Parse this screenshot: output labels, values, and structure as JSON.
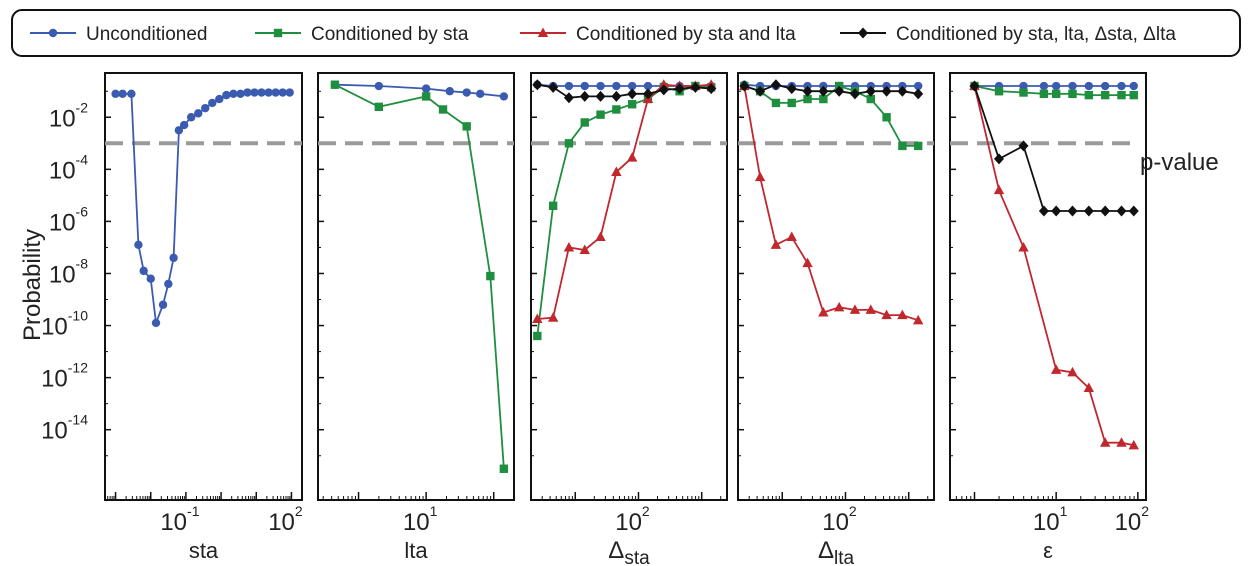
{
  "colors": {
    "unconditioned": "#3a5bb0",
    "sta": "#1f8f3f",
    "sta_lta": "#c0282e",
    "all": "#111111",
    "pvalue": "#9a9a9a"
  },
  "legend": {
    "items": [
      {
        "label": "Unconditioned",
        "series": "unconditioned",
        "marker": "circle"
      },
      {
        "label": "Conditioned by sta",
        "series": "sta",
        "marker": "square"
      },
      {
        "label": "Conditioned by sta and lta",
        "series": "sta_lta",
        "marker": "triangle"
      },
      {
        "label": "Conditioned by sta, lta, Δsta, Δlta",
        "series": "all",
        "marker": "diamond"
      }
    ]
  },
  "ylabel": "Probability",
  "pvalue_label": "p-value",
  "y_ticks": [
    {
      "exp": -2,
      "label": "10",
      "sup": "-2"
    },
    {
      "exp": -4,
      "label": "10",
      "sup": "-4"
    },
    {
      "exp": -6,
      "label": "10",
      "sup": "-6"
    },
    {
      "exp": -8,
      "label": "10",
      "sup": "-8"
    },
    {
      "exp": -10,
      "label": "10",
      "sup": "-10"
    },
    {
      "exp": -12,
      "label": "10",
      "sup": "-12"
    },
    {
      "exp": -14,
      "label": "10",
      "sup": "-14"
    }
  ],
  "chart_data": [
    {
      "type": "line",
      "xlabel": "sta",
      "xlabel_sub": "",
      "xscale": "log",
      "yscale": "log",
      "ylim_exp": [
        -16.7,
        -0.3
      ],
      "xlim_exp": [
        -3.3,
        2.3
      ],
      "xticks": [
        {
          "exp": -1,
          "label": "10",
          "sup": "-1"
        },
        {
          "exp": 2,
          "label": "10",
          "sup": "2"
        }
      ],
      "pvalue": 0.001,
      "series": [
        {
          "key": "unconditioned",
          "x_exp": [
            -3.0,
            -2.8,
            -2.55,
            -2.35,
            -2.2,
            -2.0,
            -1.85,
            -1.65,
            -1.5,
            -1.35,
            -1.2,
            -1.05,
            -0.85,
            -0.65,
            -0.45,
            -0.25,
            -0.05,
            0.15,
            0.35,
            0.55,
            0.75,
            0.95,
            1.15,
            1.35,
            1.55,
            1.75,
            1.95
          ],
          "y_exp": [
            -1.1,
            -1.1,
            -1.1,
            -6.9,
            -7.9,
            -8.2,
            -9.9,
            -9.2,
            -8.4,
            -7.4,
            -2.5,
            -2.3,
            -2.0,
            -1.85,
            -1.65,
            -1.45,
            -1.3,
            -1.15,
            -1.1,
            -1.1,
            -1.05,
            -1.05,
            -1.05,
            -1.05,
            -1.05,
            -1.05,
            -1.05
          ]
        }
      ]
    },
    {
      "type": "line",
      "xlabel": "lta",
      "xlabel_sub": "",
      "xscale": "log",
      "yscale": "log",
      "ylim_exp": [
        -16.7,
        -0.3
      ],
      "xlim_exp": [
        -0.6,
        2.3
      ],
      "xticks": [
        {
          "exp": 1,
          "label": "10",
          "sup": "1"
        }
      ],
      "pvalue": 0.001,
      "series": [
        {
          "key": "unconditioned",
          "x_exp": [
            -0.35,
            0.3,
            1.0,
            1.35,
            1.6,
            1.8,
            2.15
          ],
          "y_exp": [
            -0.75,
            -0.8,
            -0.9,
            -1.0,
            -1.05,
            -1.1,
            -1.2
          ]
        },
        {
          "key": "sta",
          "x_exp": [
            -0.35,
            0.3,
            1.0,
            1.25,
            1.6,
            1.95,
            2.15
          ],
          "y_exp": [
            -0.75,
            -1.6,
            -1.2,
            -1.7,
            -2.35,
            -8.1,
            -15.5
          ]
        }
      ]
    },
    {
      "type": "line",
      "xlabel": "Δ",
      "xlabel_sub": "sta",
      "xscale": "log",
      "yscale": "log",
      "ylim_exp": [
        -16.7,
        -0.3
      ],
      "xlim_exp": [
        0.3,
        3.4
      ],
      "xticks": [
        {
          "exp": 2,
          "label": "10",
          "sup": "2"
        }
      ],
      "pvalue": 0.001,
      "series": [
        {
          "key": "unconditioned",
          "x_exp": [
            0.4,
            0.65,
            0.9,
            1.15,
            1.4,
            1.65,
            1.9,
            2.15,
            2.4,
            2.65,
            2.9,
            3.15
          ],
          "y_exp": [
            -0.75,
            -0.8,
            -0.8,
            -0.8,
            -0.8,
            -0.8,
            -0.8,
            -0.8,
            -0.8,
            -0.8,
            -0.8,
            -0.8
          ]
        },
        {
          "key": "sta",
          "x_exp": [
            0.4,
            0.65,
            0.9,
            1.15,
            1.4,
            1.65,
            1.9,
            2.15,
            2.4,
            2.65,
            2.9,
            3.15
          ],
          "y_exp": [
            -10.4,
            -5.4,
            -3.0,
            -2.2,
            -1.9,
            -1.7,
            -1.5,
            -1.3,
            -0.85,
            -1.0,
            -0.8,
            -0.85
          ]
        },
        {
          "key": "sta_lta",
          "x_exp": [
            0.4,
            0.65,
            0.9,
            1.15,
            1.4,
            1.65,
            1.9,
            2.15,
            2.4,
            2.65,
            2.9,
            3.15
          ],
          "y_exp": [
            -9.75,
            -9.7,
            -7.0,
            -7.1,
            -6.6,
            -4.1,
            -3.55,
            -1.3,
            -0.75,
            -0.8,
            -0.8,
            -0.75
          ]
        },
        {
          "key": "all",
          "x_exp": [
            0.4,
            0.65,
            0.9,
            1.15,
            1.4,
            1.65,
            1.9,
            2.15,
            2.4,
            2.65,
            2.9,
            3.15
          ],
          "y_exp": [
            -0.75,
            -0.85,
            -1.25,
            -1.2,
            -1.2,
            -1.2,
            -1.1,
            -1.1,
            -0.95,
            -0.9,
            -0.85,
            -0.9
          ]
        }
      ]
    },
    {
      "type": "line",
      "xlabel": "Δ",
      "xlabel_sub": "lta",
      "xscale": "log",
      "yscale": "log",
      "ylim_exp": [
        -16.7,
        -0.3
      ],
      "xlim_exp": [
        0.3,
        3.4
      ],
      "xticks": [
        {
          "exp": 2,
          "label": "10",
          "sup": "2"
        }
      ],
      "pvalue": 0.001,
      "series": [
        {
          "key": "unconditioned",
          "x_exp": [
            0.4,
            0.65,
            0.9,
            1.15,
            1.4,
            1.65,
            1.9,
            2.15,
            2.4,
            2.65,
            2.9,
            3.15
          ],
          "y_exp": [
            -0.75,
            -0.8,
            -0.8,
            -0.8,
            -0.8,
            -0.8,
            -0.8,
            -0.8,
            -0.8,
            -0.8,
            -0.8,
            -0.8
          ]
        },
        {
          "key": "sta",
          "x_exp": [
            0.4,
            0.65,
            0.9,
            1.15,
            1.4,
            1.65,
            1.9,
            2.15,
            2.4,
            2.65,
            2.9,
            3.15
          ],
          "y_exp": [
            -0.8,
            -1.0,
            -1.45,
            -1.45,
            -1.3,
            -1.3,
            -0.8,
            -1.0,
            -1.3,
            -2.0,
            -3.1,
            -3.1
          ]
        },
        {
          "key": "sta_lta",
          "x_exp": [
            0.4,
            0.65,
            0.9,
            1.15,
            1.4,
            1.65,
            1.9,
            2.15,
            2.4,
            2.65,
            2.9,
            3.15
          ],
          "y_exp": [
            -0.8,
            -4.3,
            -6.9,
            -6.6,
            -7.6,
            -9.5,
            -9.3,
            -9.4,
            -9.4,
            -9.6,
            -9.6,
            -9.8
          ]
        },
        {
          "key": "all",
          "x_exp": [
            0.4,
            0.65,
            0.9,
            1.15,
            1.4,
            1.65,
            1.9,
            2.15,
            2.4,
            2.65,
            2.9,
            3.15
          ],
          "y_exp": [
            -0.8,
            -1.0,
            -0.75,
            -0.9,
            -1.0,
            -1.0,
            -1.0,
            -1.1,
            -1.0,
            -1.0,
            -1.0,
            -1.1
          ]
        }
      ]
    },
    {
      "type": "line",
      "xlabel": "ε",
      "xlabel_sub": "",
      "xscale": "log",
      "yscale": "log",
      "ylim_exp": [
        -16.7,
        -0.3
      ],
      "xlim_exp": [
        -0.3,
        2.1
      ],
      "xticks": [
        {
          "exp": 1,
          "label": "10",
          "sup": "1"
        },
        {
          "exp": 2,
          "label": "10",
          "sup": "2"
        }
      ],
      "pvalue": 0.001,
      "series": [
        {
          "key": "unconditioned",
          "x_exp": [
            0.0,
            0.3,
            0.6,
            0.85,
            1.0,
            1.2,
            1.4,
            1.6,
            1.8,
            1.95
          ],
          "y_exp": [
            -0.8,
            -0.8,
            -0.8,
            -0.8,
            -0.8,
            -0.8,
            -0.8,
            -0.8,
            -0.8,
            -0.8
          ]
        },
        {
          "key": "sta",
          "x_exp": [
            0.0,
            0.3,
            0.6,
            0.85,
            1.0,
            1.2,
            1.4,
            1.6,
            1.8,
            1.95
          ],
          "y_exp": [
            -0.8,
            -1.0,
            -1.05,
            -1.1,
            -1.1,
            -1.1,
            -1.15,
            -1.15,
            -1.15,
            -1.15
          ]
        },
        {
          "key": "sta_lta",
          "x_exp": [
            0.0,
            0.3,
            0.6,
            1.0,
            1.2,
            1.4,
            1.6,
            1.8,
            1.95
          ],
          "y_exp": [
            -0.8,
            -4.8,
            -7.0,
            -11.7,
            -11.8,
            -12.4,
            -14.5,
            -14.5,
            -14.6
          ]
        },
        {
          "key": "all",
          "x_exp": [
            0.0,
            0.3,
            0.6,
            0.85,
            1.0,
            1.2,
            1.4,
            1.6,
            1.8,
            1.95
          ],
          "y_exp": [
            -0.8,
            -3.6,
            -3.1,
            -5.6,
            -5.6,
            -5.6,
            -5.6,
            -5.6,
            -5.6,
            -5.6
          ]
        }
      ]
    }
  ]
}
